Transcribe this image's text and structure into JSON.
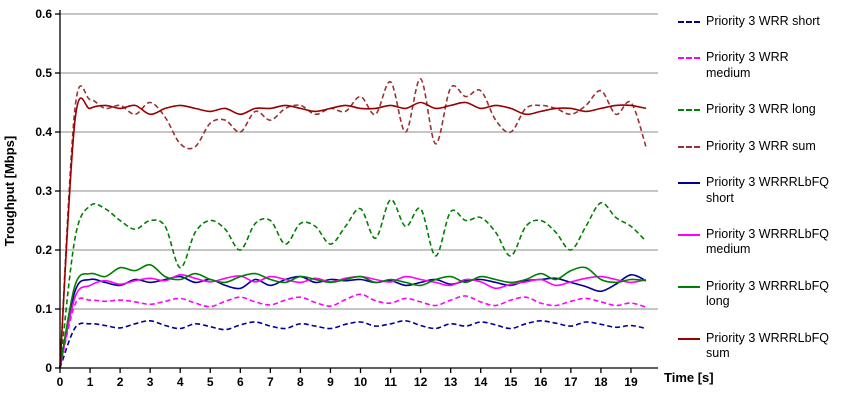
{
  "chart_data": {
    "type": "line",
    "title": "",
    "xlabel": "Time [s]",
    "ylabel": "Troughput [Mbps]",
    "xlim": [
      0,
      19.9
    ],
    "ylim": [
      0,
      0.6
    ],
    "x_ticks": [
      "0",
      "1",
      "2",
      "3",
      "4",
      "5",
      "6",
      "7",
      "8",
      "9",
      "10",
      "11",
      "12",
      "13",
      "14",
      "15",
      "16",
      "17",
      "18",
      "19"
    ],
    "y_ticks": [
      "0",
      "0.1",
      "0.2",
      "0.3",
      "0.4",
      "0.5",
      "0.6"
    ],
    "grid": "horizontal",
    "legend_position": "right",
    "grid_color": "#8c8c8c",
    "axis_color": "#000000",
    "x": [
      0,
      0.5,
      1,
      1.5,
      2,
      2.5,
      3,
      3.5,
      4,
      4.5,
      5,
      5.5,
      6,
      6.5,
      7,
      7.5,
      8,
      8.5,
      9,
      9.5,
      10,
      10.5,
      11,
      11.5,
      12,
      12.5,
      13,
      13.5,
      14,
      14.5,
      15,
      15.5,
      16,
      16.5,
      17,
      17.5,
      18,
      18.5,
      19,
      19.5
    ],
    "series": [
      {
        "name": "Priority 3 WRR short",
        "color": "#000099",
        "dash": "dashed",
        "values": [
          0,
          0.068,
          0.075,
          0.072,
          0.068,
          0.075,
          0.08,
          0.072,
          0.067,
          0.075,
          0.07,
          0.065,
          0.073,
          0.078,
          0.071,
          0.067,
          0.075,
          0.071,
          0.067,
          0.074,
          0.078,
          0.071,
          0.075,
          0.08,
          0.072,
          0.067,
          0.075,
          0.071,
          0.078,
          0.073,
          0.067,
          0.075,
          0.08,
          0.076,
          0.071,
          0.078,
          0.074,
          0.069,
          0.072,
          0.067
        ]
      },
      {
        "name": "Priority 3 WRR medium",
        "color": "#FF00FF",
        "dash": "dashed",
        "values": [
          0,
          0.108,
          0.115,
          0.113,
          0.115,
          0.112,
          0.108,
          0.113,
          0.118,
          0.11,
          0.104,
          0.113,
          0.12,
          0.112,
          0.107,
          0.115,
          0.12,
          0.111,
          0.105,
          0.116,
          0.125,
          0.114,
          0.11,
          0.118,
          0.112,
          0.106,
          0.115,
          0.122,
          0.112,
          0.106,
          0.115,
          0.12,
          0.11,
          0.106,
          0.113,
          0.118,
          0.112,
          0.106,
          0.11,
          0.103
        ]
      },
      {
        "name": "Priority 3 WRR long",
        "color": "#008000",
        "dash": "dashed",
        "values": [
          0,
          0.22,
          0.275,
          0.27,
          0.25,
          0.235,
          0.25,
          0.24,
          0.17,
          0.23,
          0.25,
          0.235,
          0.2,
          0.245,
          0.25,
          0.21,
          0.245,
          0.24,
          0.21,
          0.24,
          0.27,
          0.22,
          0.285,
          0.24,
          0.27,
          0.19,
          0.265,
          0.25,
          0.255,
          0.23,
          0.19,
          0.24,
          0.25,
          0.23,
          0.2,
          0.24,
          0.28,
          0.255,
          0.24,
          0.215
        ]
      },
      {
        "name": "Priority 3 WRR sum",
        "color": "#993333",
        "dash": "dashed",
        "values": [
          0,
          0.44,
          0.455,
          0.44,
          0.445,
          0.43,
          0.45,
          0.425,
          0.38,
          0.375,
          0.415,
          0.42,
          0.4,
          0.435,
          0.42,
          0.44,
          0.445,
          0.43,
          0.44,
          0.435,
          0.46,
          0.43,
          0.485,
          0.4,
          0.49,
          0.38,
          0.475,
          0.46,
          0.47,
          0.42,
          0.4,
          0.44,
          0.445,
          0.44,
          0.43,
          0.445,
          0.47,
          0.43,
          0.45,
          0.375
        ]
      },
      {
        "name": "Priority 3 WRRRLbFQ short",
        "color": "#000099",
        "dash": "solid",
        "values": [
          0,
          0.13,
          0.15,
          0.145,
          0.14,
          0.15,
          0.145,
          0.15,
          0.155,
          0.145,
          0.15,
          0.14,
          0.135,
          0.15,
          0.14,
          0.15,
          0.155,
          0.145,
          0.15,
          0.148,
          0.15,
          0.145,
          0.148,
          0.14,
          0.145,
          0.15,
          0.142,
          0.148,
          0.15,
          0.145,
          0.14,
          0.148,
          0.15,
          0.152,
          0.145,
          0.138,
          0.13,
          0.142,
          0.158,
          0.148
        ]
      },
      {
        "name": "Priority 3 WRRRLbFQ medium",
        "color": "#FF00FF",
        "dash": "solid",
        "values": [
          0,
          0.12,
          0.14,
          0.148,
          0.142,
          0.148,
          0.152,
          0.148,
          0.158,
          0.152,
          0.146,
          0.152,
          0.156,
          0.146,
          0.155,
          0.15,
          0.145,
          0.152,
          0.146,
          0.152,
          0.155,
          0.15,
          0.146,
          0.155,
          0.15,
          0.145,
          0.14,
          0.15,
          0.146,
          0.135,
          0.142,
          0.146,
          0.15,
          0.14,
          0.146,
          0.152,
          0.155,
          0.15,
          0.145,
          0.15
        ]
      },
      {
        "name": "Priority 3 WRRRLbFQ long",
        "color": "#008000",
        "dash": "solid",
        "values": [
          0,
          0.14,
          0.16,
          0.155,
          0.17,
          0.165,
          0.175,
          0.155,
          0.15,
          0.16,
          0.15,
          0.145,
          0.155,
          0.16,
          0.15,
          0.145,
          0.155,
          0.15,
          0.145,
          0.15,
          0.155,
          0.145,
          0.15,
          0.145,
          0.14,
          0.15,
          0.155,
          0.145,
          0.155,
          0.15,
          0.145,
          0.15,
          0.16,
          0.15,
          0.165,
          0.17,
          0.15,
          0.145,
          0.15,
          0.148
        ]
      },
      {
        "name": "Priority 3 WRRRLbFQ sum",
        "color": "#990000",
        "dash": "solid",
        "values": [
          0,
          0.42,
          0.44,
          0.445,
          0.44,
          0.445,
          0.43,
          0.44,
          0.445,
          0.44,
          0.435,
          0.44,
          0.43,
          0.44,
          0.44,
          0.445,
          0.44,
          0.435,
          0.44,
          0.445,
          0.44,
          0.44,
          0.445,
          0.44,
          0.45,
          0.44,
          0.445,
          0.45,
          0.44,
          0.445,
          0.44,
          0.43,
          0.435,
          0.44,
          0.44,
          0.435,
          0.44,
          0.445,
          0.445,
          0.44
        ]
      }
    ]
  }
}
